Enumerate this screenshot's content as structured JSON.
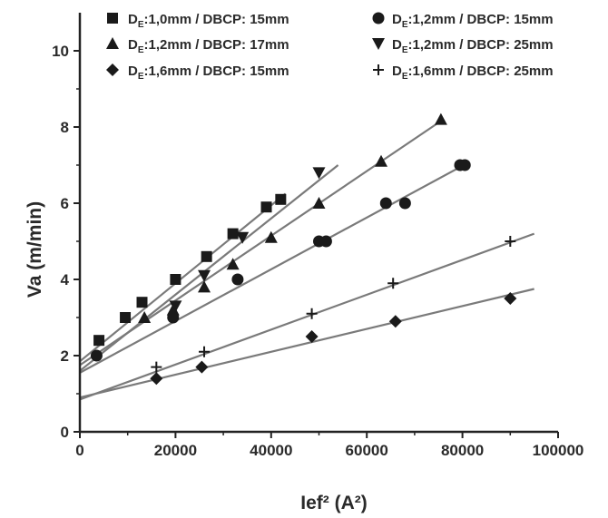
{
  "chart_data": {
    "type": "scatter",
    "title": "",
    "xlabel": "Ief² (A²)",
    "ylabel": "Va (m/min)",
    "xlim": [
      0,
      100000
    ],
    "ylim": [
      0,
      11
    ],
    "xticks": [
      0,
      20000,
      40000,
      60000,
      80000,
      100000
    ],
    "xtick_labels": [
      "0",
      "20000",
      "40000",
      "60000",
      "80000",
      "100000"
    ],
    "yticks": [
      0,
      2,
      4,
      6,
      8,
      10
    ],
    "ytick_labels": [
      "0",
      "2",
      "4",
      "6",
      "8",
      "10"
    ],
    "grid": false,
    "legend": "top",
    "series": [
      {
        "name": "DE:1,0mm / DBCP: 15mm",
        "marker": "square",
        "x": [
          4000,
          9500,
          13000,
          20000,
          26500,
          32000,
          39000,
          42000
        ],
        "y": [
          2.4,
          3.0,
          3.4,
          4.0,
          4.6,
          5.2,
          5.9,
          6.1
        ],
        "fit": {
          "x": [
            0,
            43000
          ],
          "y": [
            1.85,
            6.25
          ]
        }
      },
      {
        "name": "DE:1,2mm / DBCP: 15mm",
        "marker": "circle",
        "x": [
          3500,
          19500,
          33000,
          50000,
          51500,
          64000,
          68000,
          79500,
          80500
        ],
        "y": [
          2.0,
          3.0,
          4.0,
          5.0,
          5.0,
          6.0,
          6.0,
          7.0,
          7.0
        ],
        "fit": {
          "x": [
            0,
            81000
          ],
          "y": [
            1.55,
            7.05
          ]
        }
      },
      {
        "name": "DE:1,2mm / DBCP: 17mm",
        "marker": "triangle-up",
        "x": [
          13500,
          19500,
          26000,
          32000,
          40000,
          50000,
          63000,
          75500
        ],
        "y": [
          3.0,
          3.2,
          3.8,
          4.4,
          5.1,
          6.0,
          7.1,
          8.2
        ],
        "fit": {
          "x": [
            0,
            76000
          ],
          "y": [
            1.75,
            8.2
          ]
        }
      },
      {
        "name": "DE:1,2mm / DBCP: 25mm",
        "marker": "triangle-down",
        "x": [
          20000,
          26000,
          34000,
          50000
        ],
        "y": [
          3.3,
          4.1,
          5.1,
          6.8
        ],
        "fit": {
          "x": [
            0,
            54000
          ],
          "y": [
            1.6,
            7.0
          ]
        }
      },
      {
        "name": "DE:1,6mm / DBCP: 15mm",
        "marker": "diamond",
        "x": [
          16000,
          25500,
          48500,
          66000,
          90000
        ],
        "y": [
          1.4,
          1.7,
          2.5,
          2.9,
          3.5
        ],
        "fit": {
          "x": [
            0,
            95000
          ],
          "y": [
            0.9,
            3.75
          ]
        }
      },
      {
        "name": "DE:1,6mm / DBCP: 25mm",
        "marker": "plus",
        "x": [
          16000,
          26000,
          48500,
          65500,
          90000
        ],
        "y": [
          1.7,
          2.1,
          3.1,
          3.9,
          5.0
        ],
        "fit": {
          "x": [
            0,
            95000
          ],
          "y": [
            0.85,
            5.2
          ]
        }
      }
    ],
    "legend_entries": [
      {
        "series": 0,
        "prefix": "D",
        "sub": "E",
        "rest": ":1,0mm / DBCP: 15mm"
      },
      {
        "series": 1,
        "prefix": "D",
        "sub": "E",
        "rest": ":1,2mm / DBCP: 15mm"
      },
      {
        "series": 2,
        "prefix": "D",
        "sub": "E",
        "rest": ":1,2mm / DBCP: 17mm"
      },
      {
        "series": 3,
        "prefix": "D",
        "sub": "E",
        "rest": ":1,2mm / DBCP: 25mm"
      },
      {
        "series": 4,
        "prefix": "D",
        "sub": "E",
        "rest": ":1,6mm / DBCP: 15mm"
      },
      {
        "series": 5,
        "prefix": "D",
        "sub": "E",
        "rest": ":1,6mm / DBCP: 25mm"
      }
    ],
    "colors": {
      "marker": "#1a1a1a",
      "fit_line": "#7a7a7a",
      "axis": "#222222",
      "text": "#2a2a2a"
    }
  }
}
